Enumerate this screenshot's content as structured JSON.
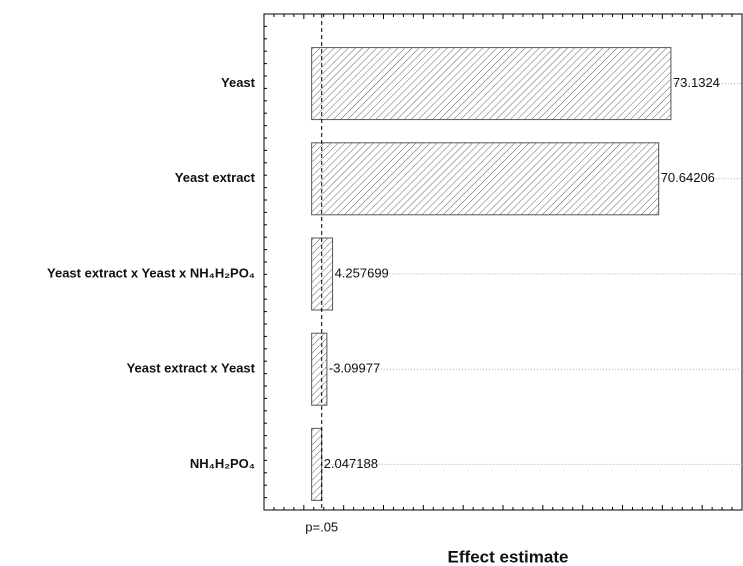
{
  "chart_data": {
    "type": "pareto",
    "x_label": "Effect estimate",
    "categories": [
      "Yeast",
      "Yeast extract",
      "Yeast extract x Yeast x NH₄H₂PO₄",
      "Yeast extract x Yeast",
      "NH₄H₂PO₄"
    ],
    "values": [
      73.1324,
      70.64206,
      4.257699,
      -3.09977,
      2.047188
    ],
    "xlim": [
      -9.7,
      87.6
    ],
    "significance_line": {
      "value": 2.05,
      "label": "p=.05"
    },
    "color": "#555555",
    "grid": true
  }
}
